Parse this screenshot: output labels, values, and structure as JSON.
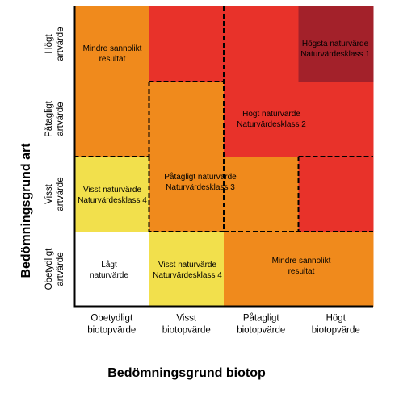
{
  "colors": {
    "white": "#ffffff",
    "yellow": "#f2e04c",
    "orange": "#f08a1c",
    "red": "#e8322a",
    "dark_red": "#a3212a",
    "axis": "#000000"
  },
  "axis_titles": {
    "y": "Bedömningsgrund art",
    "x": "Bedömningsgrund biotop"
  },
  "rows": [
    {
      "lines": [
        "Högt",
        "artvärde"
      ]
    },
    {
      "lines": [
        "Påtagligt",
        "artvärde"
      ]
    },
    {
      "lines": [
        "Visst",
        "artvärde"
      ]
    },
    {
      "lines": [
        "Obetydligt",
        "artvärde"
      ]
    }
  ],
  "columns": [
    {
      "lines": [
        "Obetydligt",
        "biotopvärde"
      ]
    },
    {
      "lines": [
        "Visst",
        "biotopvärde"
      ]
    },
    {
      "lines": [
        "Påtagligt",
        "biotopvärde"
      ]
    },
    {
      "lines": [
        "Högt",
        "biotopvärde"
      ]
    }
  ],
  "grid_colors": [
    [
      "orange",
      "red",
      "red",
      "dark_red"
    ],
    [
      "orange",
      "orange",
      "red",
      "red"
    ],
    [
      "yellow",
      "orange",
      "orange",
      "red"
    ],
    [
      "white",
      "yellow",
      "orange",
      "orange"
    ]
  ],
  "cell_labels": [
    {
      "row": 0,
      "col": 0,
      "lines": [
        "Mindre sannolikt",
        "resultat"
      ]
    },
    {
      "row": 0,
      "col": 3,
      "lines": [
        "Högsta naturvärde",
        "Naturvärdesklass 1"
      ]
    },
    {
      "row": 1,
      "col": 2.5,
      "lines": [
        "Högt naturvärde",
        "Naturvärdesklass 2"
      ]
    },
    {
      "row": 2,
      "col": 0,
      "lines": [
        "Visst naturvärde",
        "Naturvärdesklass 4"
      ]
    },
    {
      "row": 1.9,
      "col": 1.5,
      "lines": [
        "Påtagligt naturvärde",
        "Naturvärdesklass 3"
      ]
    },
    {
      "row": 3,
      "col": 0,
      "lines": [
        "Lågt",
        "naturvärde"
      ]
    },
    {
      "row": 3,
      "col": 1,
      "lines": [
        "Visst naturvärde",
        "Naturvärdesklass 4"
      ]
    },
    {
      "row": 3,
      "col": 2.5,
      "lines": [
        "Mindre sannolikt",
        "resultat"
      ]
    }
  ]
}
